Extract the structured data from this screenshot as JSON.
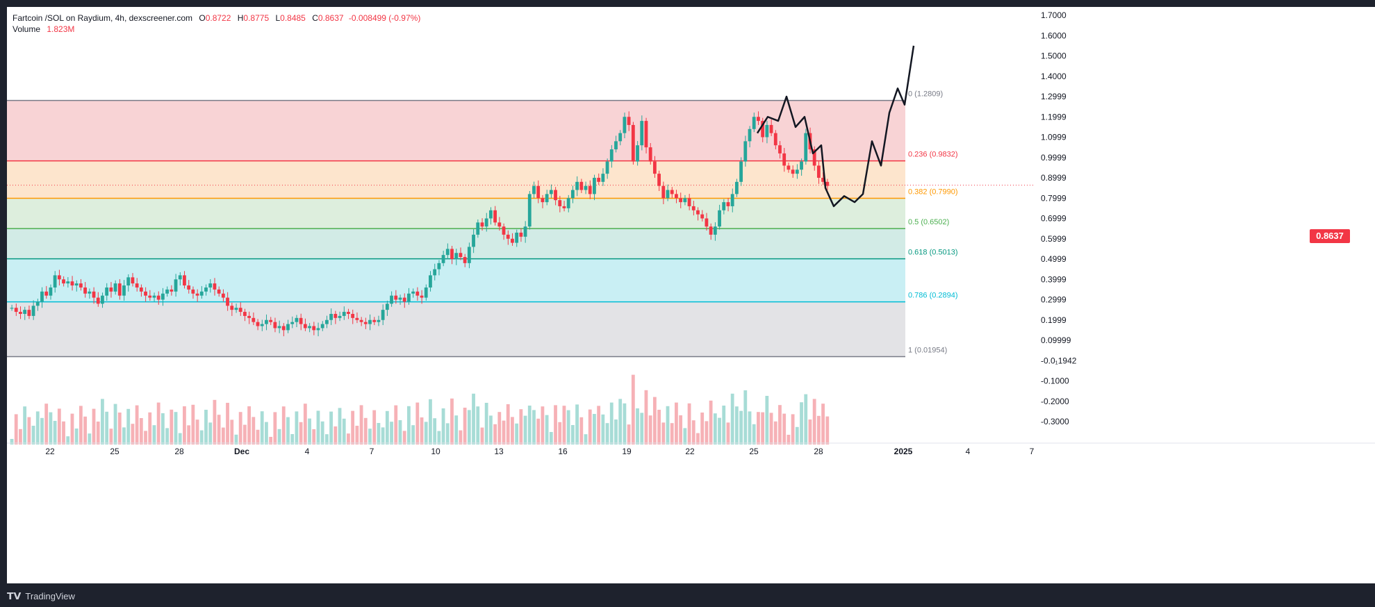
{
  "header": {
    "symbol": "Fartcoin /SOL on Raydium, 4h, dexscreener.com",
    "open_label": "O",
    "open": "0.8722",
    "high_label": "H",
    "high": "0.8775",
    "low_label": "L",
    "low": "0.8485",
    "close_label": "C",
    "close": "0.8637",
    "change": "-0.008499 (-0.97%)",
    "volume_label": "Volume",
    "volume": "1.823M"
  },
  "price_tag": "0.8637",
  "footer": {
    "logo_text": "TradingView"
  },
  "colors": {
    "up": "#26a69a",
    "down": "#f23645"
  },
  "chart_data": {
    "type": "candlestick",
    "y_ticks": [
      "1.7000",
      "1.6000",
      "1.5000",
      "1.4000",
      "1.2999",
      "1.1999",
      "1.0999",
      "0.9999",
      "0.8999",
      "0.7999",
      "0.6999",
      "0.5999",
      "0.4999",
      "0.3999",
      "0.2999",
      "0.1999",
      "0.09999",
      "-0.0₁1942",
      "-0.1000",
      "-0.2000",
      "-0.3000"
    ],
    "y_tick_values": [
      1.7,
      1.6,
      1.5,
      1.4,
      1.3,
      1.2,
      1.1,
      1.0,
      0.9,
      0.8,
      0.7,
      0.6,
      0.5,
      0.4,
      0.3,
      0.2,
      0.1,
      0.0,
      -0.1,
      -0.2,
      -0.3
    ],
    "x_labels": [
      "22",
      "25",
      "28",
      "Dec",
      "4",
      "7",
      "10",
      "13",
      "16",
      "19",
      "22",
      "25",
      "28",
      "2025",
      "4",
      "7"
    ],
    "last_price": 0.8637,
    "fib_levels": [
      {
        "label": "0 (1.2809)",
        "value": 1.2809,
        "line": "#787b86",
        "fill": "#f8d3d5"
      },
      {
        "label": "0.236 (0.9832)",
        "value": 0.9832,
        "line": "#f23645",
        "fill": "#fde5cd"
      },
      {
        "label": "0.382 (0.7990)",
        "value": 0.799,
        "line": "#ff9800",
        "fill": "#ddeedd"
      },
      {
        "label": "0.5 (0.6502)",
        "value": 0.6502,
        "line": "#4caf50",
        "fill": "#d2ebe6"
      },
      {
        "label": "0.618 (0.5013)",
        "value": 0.5013,
        "line": "#089981",
        "fill": "#c9eff4"
      },
      {
        "label": "0.786 (0.2894)",
        "value": 0.2894,
        "line": "#00bcd4",
        "fill": "#e3e3e6"
      },
      {
        "label": "1 (0.01954)",
        "value": 0.01954,
        "line": "#787b86",
        "fill": ""
      }
    ],
    "candle_closes": [
      0.26,
      0.24,
      0.23,
      0.25,
      0.22,
      0.27,
      0.29,
      0.34,
      0.32,
      0.36,
      0.42,
      0.4,
      0.38,
      0.39,
      0.37,
      0.38,
      0.36,
      0.33,
      0.34,
      0.31,
      0.28,
      0.32,
      0.36,
      0.34,
      0.38,
      0.32,
      0.37,
      0.41,
      0.38,
      0.36,
      0.34,
      0.32,
      0.31,
      0.32,
      0.3,
      0.33,
      0.35,
      0.34,
      0.4,
      0.42,
      0.37,
      0.35,
      0.33,
      0.32,
      0.34,
      0.36,
      0.38,
      0.35,
      0.33,
      0.31,
      0.27,
      0.25,
      0.26,
      0.24,
      0.22,
      0.21,
      0.19,
      0.17,
      0.18,
      0.2,
      0.19,
      0.16,
      0.17,
      0.15,
      0.18,
      0.19,
      0.21,
      0.18,
      0.16,
      0.17,
      0.15,
      0.16,
      0.18,
      0.2,
      0.23,
      0.21,
      0.22,
      0.24,
      0.23,
      0.21,
      0.2,
      0.19,
      0.18,
      0.2,
      0.19,
      0.2,
      0.25,
      0.28,
      0.32,
      0.3,
      0.31,
      0.29,
      0.33,
      0.34,
      0.32,
      0.31,
      0.36,
      0.42,
      0.45,
      0.48,
      0.52,
      0.55,
      0.5,
      0.53,
      0.51,
      0.48,
      0.56,
      0.62,
      0.68,
      0.66,
      0.7,
      0.74,
      0.68,
      0.66,
      0.62,
      0.6,
      0.58,
      0.63,
      0.61,
      0.66,
      0.82,
      0.86,
      0.8,
      0.78,
      0.82,
      0.84,
      0.79,
      0.76,
      0.75,
      0.8,
      0.84,
      0.88,
      0.84,
      0.86,
      0.82,
      0.9,
      0.88,
      0.92,
      0.98,
      1.04,
      1.08,
      1.12,
      1.2,
      1.16,
      0.98,
      1.06,
      1.18,
      1.05,
      0.98,
      0.92,
      0.86,
      0.8,
      0.84,
      0.82,
      0.8,
      0.78,
      0.8,
      0.76,
      0.74,
      0.72,
      0.7,
      0.66,
      0.62,
      0.66,
      0.74,
      0.78,
      0.76,
      0.82,
      0.88,
      0.98,
      1.08,
      1.14,
      1.2,
      1.18,
      1.1,
      1.16,
      1.12,
      1.06,
      1.02,
      0.96,
      0.94,
      0.92,
      0.94,
      0.98,
      1.12,
      1.04,
      0.96,
      0.9,
      0.88,
      0.86
    ]
  }
}
